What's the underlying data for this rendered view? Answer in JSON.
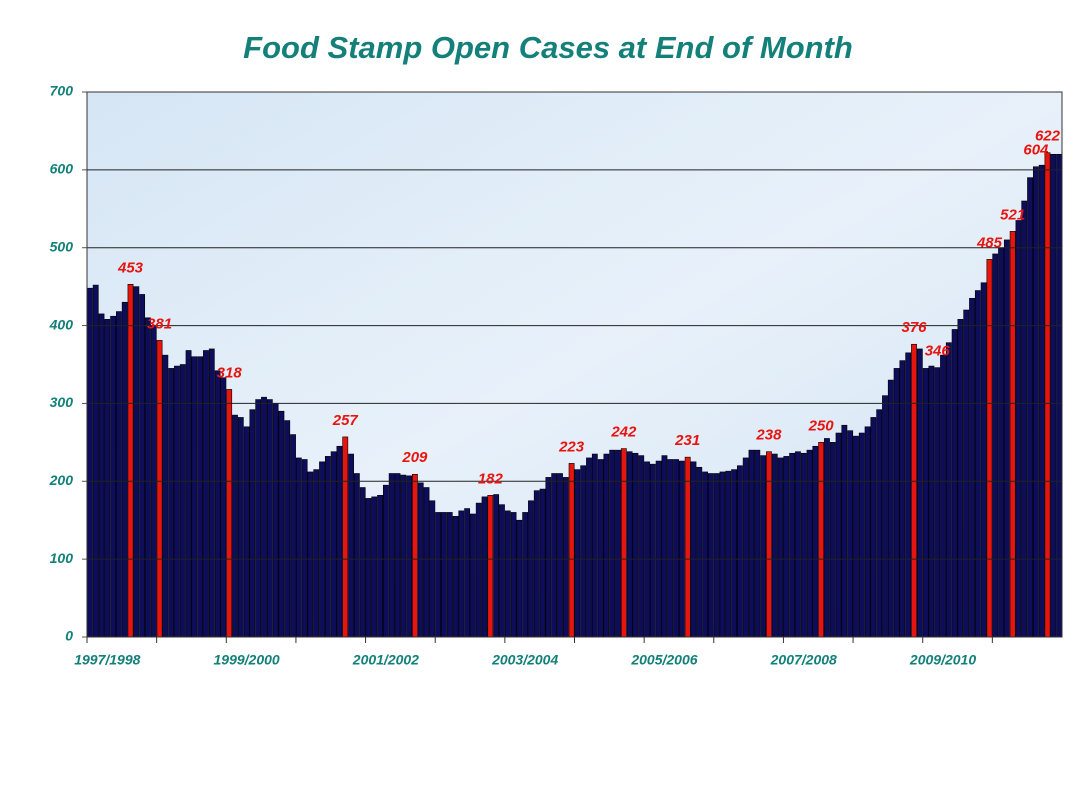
{
  "chart_data": {
    "type": "bar",
    "title": "Food Stamp Open Cases at End of Month",
    "categories": [
      "1997/1998",
      null,
      null,
      null,
      null,
      null,
      null,
      null,
      null,
      null,
      null,
      null,
      null,
      null,
      null,
      null,
      null,
      null,
      null,
      null,
      null,
      null,
      null,
      null,
      "1999/2000",
      null,
      null,
      null,
      null,
      null,
      null,
      null,
      null,
      null,
      null,
      null,
      null,
      null,
      null,
      null,
      null,
      null,
      null,
      null,
      null,
      null,
      null,
      null,
      "2001/2002",
      null,
      null,
      null,
      null,
      null,
      null,
      null,
      null,
      null,
      null,
      null,
      null,
      null,
      null,
      null,
      null,
      null,
      null,
      null,
      null,
      null,
      null,
      null,
      "2003/2004",
      null,
      null,
      null,
      null,
      null,
      null,
      null,
      null,
      null,
      null,
      null,
      null,
      null,
      null,
      null,
      null,
      null,
      null,
      null,
      null,
      null,
      null,
      null,
      "2005/2006",
      null,
      null,
      null,
      null,
      null,
      null,
      null,
      null,
      null,
      null,
      null,
      null,
      null,
      null,
      null,
      null,
      null,
      null,
      null,
      null,
      null,
      null,
      null,
      "2007/2008",
      null,
      null,
      null,
      null,
      null,
      null,
      null,
      null,
      null,
      null,
      null,
      null,
      null,
      null,
      null,
      null,
      null,
      null,
      null,
      null,
      null,
      null,
      null,
      "2009/2010",
      null,
      null,
      null,
      null,
      null,
      null,
      null,
      null,
      null,
      null,
      null,
      null,
      null,
      null,
      null,
      null,
      null,
      null,
      null,
      null,
      null,
      null,
      null
    ],
    "values": [
      448,
      452,
      415,
      408,
      412,
      418,
      430,
      453,
      450,
      440,
      410,
      400,
      381,
      362,
      345,
      348,
      350,
      368,
      360,
      360,
      368,
      370,
      342,
      333,
      318,
      285,
      282,
      270,
      292,
      305,
      308,
      305,
      300,
      290,
      278,
      260,
      230,
      228,
      212,
      215,
      225,
      232,
      238,
      245,
      257,
      235,
      210,
      192,
      178,
      180,
      182,
      195,
      210,
      210,
      208,
      207,
      209,
      198,
      192,
      175,
      160,
      160,
      160,
      155,
      162,
      165,
      158,
      172,
      180,
      182,
      183,
      170,
      162,
      160,
      150,
      160,
      175,
      188,
      190,
      205,
      210,
      210,
      205,
      223,
      215,
      220,
      230,
      235,
      228,
      235,
      240,
      240,
      242,
      238,
      236,
      233,
      225,
      222,
      226,
      233,
      228,
      228,
      226,
      231,
      225,
      218,
      212,
      210,
      210,
      212,
      213,
      215,
      220,
      230,
      240,
      240,
      233,
      238,
      235,
      230,
      232,
      236,
      238,
      236,
      240,
      245,
      250,
      255,
      250,
      262,
      272,
      265,
      258,
      262,
      270,
      282,
      292,
      310,
      330,
      345,
      355,
      365,
      376,
      370,
      345,
      348,
      346,
      362,
      378,
      395,
      408,
      420,
      435,
      445,
      455,
      485,
      492,
      500,
      510,
      521,
      535,
      560,
      590,
      604,
      606,
      622,
      620,
      620
    ],
    "color": "#0d0d5c",
    "highlight_color": "#e8140f",
    "highlights": [
      7,
      12,
      24,
      44,
      56,
      69,
      83,
      92,
      103,
      117,
      126,
      142,
      155,
      159,
      165
    ],
    "labeled": [
      7,
      12,
      24,
      44,
      56,
      69,
      83,
      92,
      103,
      117,
      126,
      142,
      146,
      155,
      159,
      163,
      165
    ],
    "ylim": [
      0,
      700
    ],
    "yticks": [
      0,
      100,
      200,
      300,
      400,
      500,
      600,
      700
    ],
    "grid": true
  }
}
